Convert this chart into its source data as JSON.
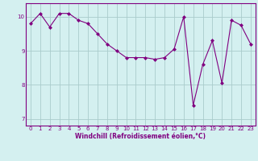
{
  "x": [
    0,
    1,
    2,
    3,
    4,
    5,
    6,
    7,
    8,
    9,
    10,
    11,
    12,
    13,
    14,
    15,
    16,
    17,
    18,
    19,
    20,
    21,
    22,
    23
  ],
  "y": [
    9.8,
    10.1,
    9.7,
    10.1,
    10.1,
    9.9,
    9.8,
    9.5,
    9.2,
    9.0,
    8.8,
    8.8,
    8.8,
    8.75,
    8.8,
    9.05,
    10.0,
    7.4,
    8.6,
    9.3,
    8.05,
    9.9,
    9.75,
    9.2
  ],
  "line_color": "#800080",
  "marker": "D",
  "marker_size": 2,
  "bg_color": "#d4f0f0",
  "grid_color": "#aacccc",
  "xlabel": "Windchill (Refroidissement éolien,°C)",
  "xlim": [
    -0.5,
    23.5
  ],
  "ylim": [
    6.8,
    10.4
  ],
  "yticks": [
    7,
    8,
    9,
    10
  ],
  "xticks": [
    0,
    1,
    2,
    3,
    4,
    5,
    6,
    7,
    8,
    9,
    10,
    11,
    12,
    13,
    14,
    15,
    16,
    17,
    18,
    19,
    20,
    21,
    22,
    23
  ],
  "tick_fontsize": 5.0,
  "xlabel_fontsize": 5.5,
  "spine_color": "#800080",
  "line_width": 0.8
}
